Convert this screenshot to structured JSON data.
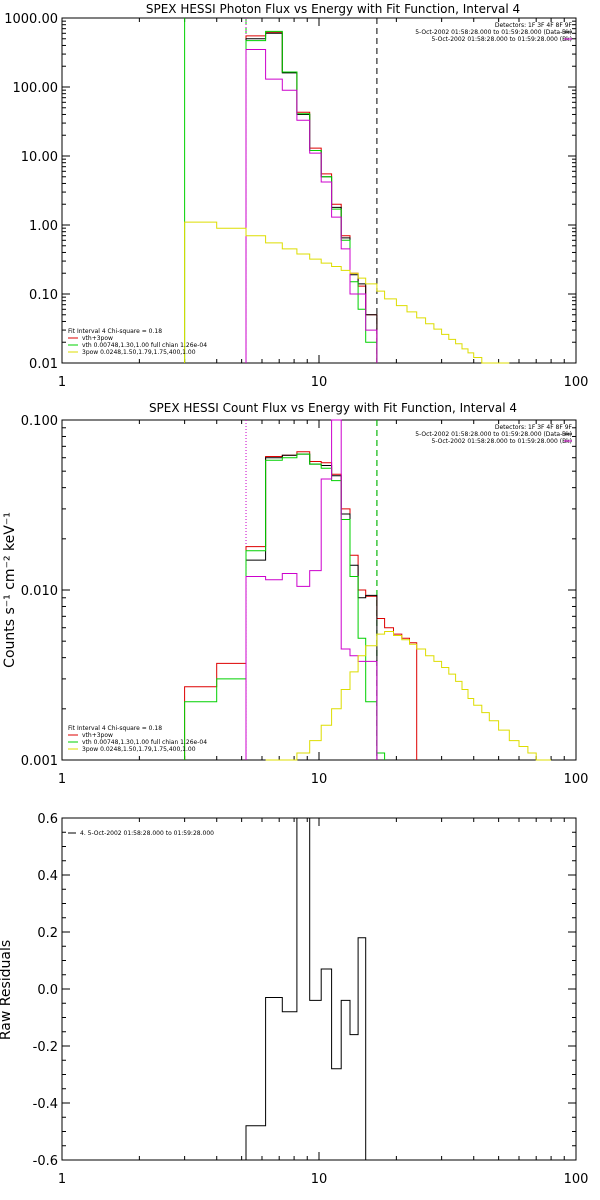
{
  "chart_data": [
    {
      "type": "line",
      "title": "SPEX HESSI Photon Flux vs Energy with Fit Function, Interval 4",
      "xscale": "log",
      "yscale": "log",
      "xlim": [
        1,
        100
      ],
      "ylim": [
        0.01,
        1000
      ],
      "xticks": [
        "1",
        "10",
        "100"
      ],
      "yticks": [
        "1000.00",
        "100.00",
        "10.00",
        "1.00",
        "0.10",
        "0.01"
      ],
      "ytick_values": [
        1000,
        100,
        10,
        1,
        0.1,
        0.01
      ],
      "header": [
        "Detectors: 1F 3F 4F 8F 9F",
        "5-Oct-2002 01:58:28.000 to 01:59:28.000 (Data-Bk)",
        "5-Oct-2002 01:58:28.000 to 01:59:28.000 (Bk)"
      ],
      "fit_text": [
        "Fit Interval  4    Chi-square = 0.18",
        "vth+3pow",
        "vth 0.00748,1.30,1.00  full chian 1.26e-04",
        "3pow 0.0248,1.50,1.79,1.75,400,1.00"
      ],
      "vlines": [
        {
          "x": 3.0,
          "color": "#00d000",
          "style": "solid"
        },
        {
          "x": 5.2,
          "color": "#00d000",
          "style": "dashed"
        },
        {
          "x": 5.2,
          "color": "#cc00cc",
          "style": "dotted"
        },
        {
          "x": 16.8,
          "color": "#000000",
          "style": "dashed"
        }
      ],
      "series": [
        {
          "name": "vth+3pow",
          "color": "#dd0000",
          "edges": [
            5.2,
            6.2,
            7.2,
            8.2,
            9.2,
            10.2,
            11.2,
            12.2,
            13.2,
            14.2,
            15.2,
            16.8
          ],
          "values": [
            550,
            620,
            165,
            43,
            13,
            5.5,
            2.0,
            0.7,
            0.2,
            0.13,
            0.05
          ]
        },
        {
          "name": "Data-Bk",
          "color": "#000000",
          "edges": [
            5.2,
            6.2,
            7.2,
            8.2,
            9.2,
            10.2,
            11.2,
            12.2,
            13.2,
            14.2,
            15.2,
            16.8
          ],
          "values": [
            500,
            600,
            160,
            40,
            12,
            5.0,
            1.8,
            0.65,
            0.19,
            0.14,
            0.05
          ]
        },
        {
          "name": "vth",
          "color": "#00d000",
          "edges": [
            5.2,
            6.2,
            7.2,
            8.2,
            9.2,
            10.2,
            11.2,
            12.2,
            13.2,
            14.2,
            15.2,
            16.8
          ],
          "values": [
            470,
            640,
            165,
            41,
            12,
            5.0,
            1.7,
            0.6,
            0.15,
            0.06,
            0.02
          ]
        },
        {
          "name": "Bk",
          "color": "#cc00cc",
          "edges": [
            5.2,
            6.2,
            7.2,
            8.2,
            9.2,
            10.2,
            11.2,
            12.2,
            13.2,
            14.2,
            15.2,
            16.8
          ],
          "values": [
            350,
            130,
            90,
            33,
            11,
            4.2,
            1.3,
            0.45,
            0.1,
            0.1,
            0.03
          ]
        },
        {
          "name": "3pow",
          "color": "#dddd00",
          "edges": [
            3.0,
            4.0,
            5.2,
            6.2,
            7.2,
            8.2,
            9.2,
            10.2,
            11.2,
            12.2,
            13.2,
            14.2,
            15.2,
            16.8,
            18,
            20,
            22,
            24,
            26,
            28,
            30,
            32,
            34,
            36,
            38,
            40,
            43,
            46,
            50,
            55
          ],
          "values": [
            1.1,
            0.9,
            0.7,
            0.55,
            0.45,
            0.38,
            0.32,
            0.28,
            0.25,
            0.22,
            0.2,
            0.17,
            0.14,
            0.11,
            0.085,
            0.068,
            0.055,
            0.045,
            0.037,
            0.031,
            0.026,
            0.022,
            0.019,
            0.016,
            0.014,
            0.012,
            0.01,
            0.009,
            0.008
          ]
        }
      ]
    },
    {
      "type": "line",
      "title": "SPEX HESSI Count Flux vs Energy with Fit Function, Interval 4",
      "ylabel": "Counts s⁻¹ cm⁻² keV⁻¹",
      "xscale": "log",
      "yscale": "log",
      "xlim": [
        1,
        100
      ],
      "ylim": [
        0.001,
        0.1
      ],
      "xticks": [
        "1",
        "10",
        "100"
      ],
      "yticks": [
        "0.100",
        "0.010",
        "0.001"
      ],
      "ytick_values": [
        0.1,
        0.01,
        0.001
      ],
      "header": [
        "Detectors: 1F 3F 4F 8F 9F",
        "5-Oct-2002 01:58:28.000 to 01:59:28.000 (Data-Bk)",
        "5-Oct-2002 01:58:28.000 to 01:59:28.000 (Bk)"
      ],
      "fit_text": [
        "Fit Interval  4    Chi-square = 0.18",
        "vth+3pow",
        "vth 0.00748,1.30,1.00  full chian 1.26e-04",
        "3pow 0.0248,1.50,1.79,1.75,400,1.00"
      ],
      "vlines": [
        {
          "x": 5.2,
          "color": "#000000",
          "style": "dotted"
        },
        {
          "x": 5.2,
          "color": "#cc00cc",
          "style": "dotted"
        },
        {
          "x": 16.8,
          "color": "#000000",
          "style": "dashed"
        },
        {
          "x": 16.8,
          "color": "#00d000",
          "style": "dashed"
        }
      ],
      "series": [
        {
          "name": "vth+3pow",
          "color": "#dd0000",
          "edges": [
            3.0,
            4.0,
            5.2,
            6.2,
            7.2,
            8.2,
            9.2,
            10.2,
            11.2,
            12.2,
            13.2,
            14.2,
            15.2,
            16.8,
            18,
            19.5,
            21,
            22.5,
            24
          ],
          "values": [
            0.0027,
            0.0037,
            0.018,
            0.061,
            0.062,
            0.065,
            0.057,
            0.056,
            0.048,
            0.03,
            0.016,
            0.01,
            0.0092,
            0.0068,
            0.006,
            0.0055,
            0.0052,
            0.0049
          ]
        },
        {
          "name": "Data-Bk",
          "color": "#000000",
          "edges": [
            5.2,
            6.2,
            7.2,
            8.2,
            9.2,
            10.2,
            11.2,
            12.2,
            13.2,
            14.2,
            15.2,
            16.8
          ],
          "values": [
            0.015,
            0.06,
            0.062,
            0.063,
            0.055,
            0.054,
            0.047,
            0.028,
            0.014,
            0.009,
            0.0093
          ]
        },
        {
          "name": "vth",
          "color": "#00d000",
          "edges": [
            3.0,
            4.0,
            5.2,
            6.2,
            7.2,
            8.2,
            9.2,
            10.2,
            11.2,
            12.2,
            13.2,
            14.2,
            15.2,
            16.8,
            18
          ],
          "values": [
            0.0022,
            0.003,
            0.017,
            0.058,
            0.06,
            0.063,
            0.055,
            0.052,
            0.044,
            0.026,
            0.012,
            0.0052,
            0.0022,
            0.0011
          ]
        },
        {
          "name": "Bk",
          "color": "#cc00cc",
          "edges": [
            5.2,
            6.2,
            7.2,
            8.2,
            9.2,
            10.2,
            11.2,
            12.2,
            13.2,
            14.2,
            15.2,
            16.8
          ],
          "values": [
            0.012,
            0.0115,
            0.0125,
            0.0105,
            0.013,
            0.045,
            0.1,
            0.0045,
            0.0041,
            0.0038,
            0.0038
          ]
        },
        {
          "name": "3pow",
          "color": "#dddd00",
          "edges": [
            6.2,
            7.2,
            8.2,
            9.2,
            10.2,
            11.2,
            12.2,
            13.2,
            14.2,
            15.2,
            16.8,
            18,
            19.5,
            21,
            22.5,
            24,
            26,
            28,
            30,
            32,
            34,
            36,
            38,
            40,
            43,
            46,
            50,
            55,
            60,
            65,
            70,
            75,
            80
          ],
          "values": [
            0.0008,
            0.0009,
            0.0011,
            0.0013,
            0.0016,
            0.002,
            0.0026,
            0.0033,
            0.0041,
            0.0047,
            0.0055,
            0.0057,
            0.0054,
            0.0051,
            0.0048,
            0.0045,
            0.0041,
            0.0038,
            0.0035,
            0.0032,
            0.0029,
            0.0026,
            0.0023,
            0.0021,
            0.0019,
            0.0017,
            0.0015,
            0.0013,
            0.0012,
            0.0011,
            0.001,
            0.0009
          ]
        }
      ]
    },
    {
      "type": "line",
      "title": "",
      "ylabel": "Raw Residuals",
      "xscale": "log",
      "yscale": "linear",
      "xlim": [
        1,
        100
      ],
      "ylim": [
        -0.6,
        0.6
      ],
      "xticks": [
        "1",
        "10",
        "100"
      ],
      "yticks": [
        "0.6",
        "0.4",
        "0.2",
        "0.0",
        "-0.2",
        "-0.4",
        "-0.6"
      ],
      "ytick_values": [
        0.6,
        0.4,
        0.2,
        0.0,
        -0.2,
        -0.4,
        -0.6
      ],
      "legend": "4.  5-Oct-2002 01:58:28.000 to 01:59:28.000",
      "series": [
        {
          "name": "4.  5-Oct-2002 01:58:28.000 to 01:59:28.000",
          "color": "#000000",
          "edges": [
            5.2,
            6.2,
            7.2,
            8.2,
            9.2,
            10.2,
            11.2,
            12.2,
            13.2,
            14.2,
            15.2,
            16.8
          ],
          "values": [
            -0.48,
            -0.03,
            -0.08,
            0.6,
            -0.04,
            0.07,
            -0.28,
            -0.04,
            -0.16,
            0.18,
            -0.6
          ]
        }
      ]
    }
  ]
}
